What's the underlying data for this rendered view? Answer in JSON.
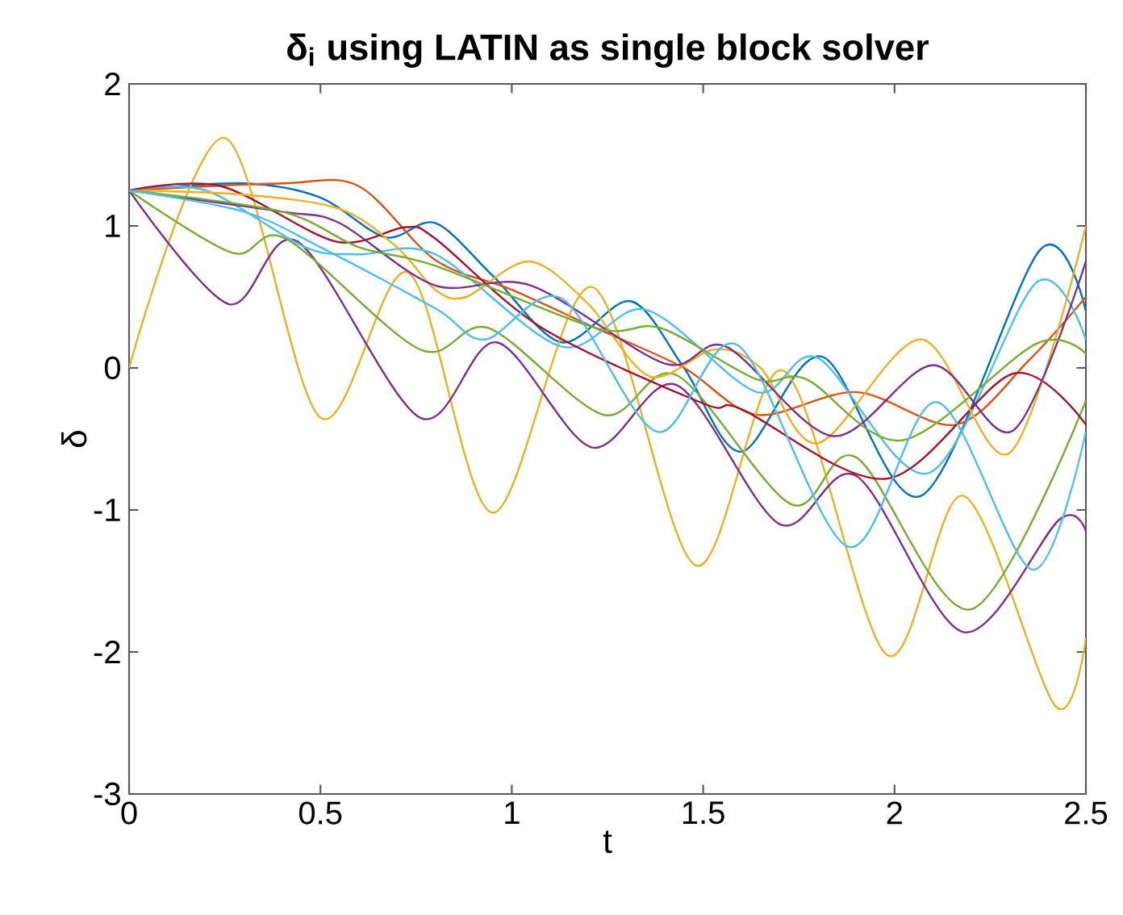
{
  "chart_data": {
    "type": "line",
    "title": "δ$_{i}$ using LATIN as single block solver",
    "xlabel": "t",
    "ylabel": "δ",
    "xlim": [
      0,
      2.5
    ],
    "ylim": [
      -3,
      2
    ],
    "xticks": [
      0,
      0.5,
      1,
      1.5,
      2,
      2.5
    ],
    "yticks": [
      -3,
      -2,
      -1,
      0,
      1,
      2
    ],
    "grid": false,
    "marker": "none",
    "line_style": "solid",
    "series": [
      {
        "color": "#0072bd",
        "x": [
          0,
          0.3,
          0.5,
          0.67,
          0.8,
          0.95,
          1.13,
          1.31,
          1.45,
          1.6,
          1.81,
          2.07,
          2.38,
          2.5
        ],
        "values": [
          1.25,
          1.3,
          1.2,
          0.92,
          1.02,
          0.65,
          0.18,
          0.47,
          0.0,
          -0.59,
          0.08,
          -0.9,
          0.83,
          0.4
        ]
      },
      {
        "color": "#d95319",
        "x": [
          0,
          0.4,
          0.6,
          0.8,
          1.0,
          1.22,
          1.45,
          1.64,
          1.9,
          2.16,
          2.35,
          2.5
        ],
        "values": [
          1.25,
          1.3,
          1.28,
          0.76,
          0.55,
          0.28,
          0.0,
          -0.33,
          -0.17,
          -0.4,
          0.05,
          0.5
        ]
      },
      {
        "color": "#edb120",
        "x": [
          0,
          0.25,
          0.5,
          0.73,
          0.95,
          1.21,
          1.48,
          1.71,
          1.98,
          2.18,
          2.42,
          2.5
        ],
        "values": [
          0,
          1.62,
          -0.35,
          0.67,
          -1.02,
          0.57,
          -1.39,
          -0.02,
          -2.02,
          -0.9,
          -2.38,
          -1.9
        ]
      },
      {
        "color": "#7e2f8e",
        "x": [
          0,
          0.26,
          0.44,
          0.76,
          0.96,
          1.21,
          1.43,
          1.7,
          1.9,
          2.18,
          2.43,
          2.5
        ],
        "values": [
          1.25,
          0.45,
          0.89,
          -0.35,
          0.18,
          -0.56,
          -0.12,
          -1.1,
          -0.76,
          -1.86,
          -1.07,
          -1.15
        ]
      },
      {
        "color": "#77ac30",
        "x": [
          0,
          0.27,
          0.41,
          0.76,
          0.94,
          1.24,
          1.43,
          1.73,
          1.9,
          2.2,
          2.5
        ],
        "values": [
          1.25,
          0.81,
          0.91,
          0.13,
          0.28,
          -0.33,
          -0.05,
          -0.96,
          -0.63,
          -1.7,
          -0.23
        ]
      },
      {
        "color": "#4dbeee",
        "x": [
          0,
          0.2,
          0.46,
          0.6,
          0.8,
          1.13,
          1.35,
          1.64,
          1.8,
          2.09,
          2.37,
          2.5
        ],
        "values": [
          1.25,
          1.25,
          0.85,
          0.8,
          0.8,
          0.15,
          0.41,
          -0.17,
          0.07,
          -0.74,
          0.6,
          0.2
        ]
      },
      {
        "color": "#a2142f",
        "x": [
          0,
          0.24,
          0.54,
          0.72,
          0.8,
          1.08,
          1.5,
          1.6,
          1.98,
          2.31,
          2.5
        ],
        "values": [
          1.25,
          1.28,
          0.89,
          0.99,
          0.91,
          0.28,
          -0.25,
          -0.29,
          -0.78,
          -0.04,
          -0.4
        ]
      },
      {
        "color": "#edb120",
        "x": [
          0,
          0.3,
          0.55,
          0.7,
          0.8,
          0.88,
          1.045,
          1.2,
          1.36,
          1.53,
          1.65,
          1.8,
          2.07,
          2.3,
          2.5
        ],
        "values": [
          1.25,
          1.22,
          1.12,
          0.85,
          0.55,
          0.5,
          0.75,
          0.45,
          -0.06,
          0.13,
          0.0,
          -0.53,
          0.2,
          -0.6,
          1.0
        ]
      },
      {
        "color": "#7e2f8e",
        "x": [
          0,
          0.4,
          0.55,
          0.8,
          1.05,
          1.4,
          1.56,
          1.84,
          2.1,
          2.31,
          2.5
        ],
        "values": [
          1.25,
          1.1,
          1.02,
          0.58,
          0.58,
          0.03,
          0.15,
          -0.48,
          0.02,
          -0.44,
          0.75
        ]
      },
      {
        "color": "#77ac30",
        "x": [
          0,
          0.4,
          0.6,
          0.8,
          1.22,
          1.39,
          1.64,
          1.77,
          2.02,
          2.37,
          2.5
        ],
        "values": [
          1.25,
          1.1,
          0.85,
          0.72,
          0.28,
          0.28,
          -0.08,
          -0.08,
          -0.51,
          0.17,
          0.1
        ]
      },
      {
        "color": "#4dbeee",
        "x": [
          0,
          0.3,
          0.5,
          0.8,
          0.93,
          1.13,
          1.38,
          1.59,
          1.88,
          2.11,
          2.36,
          2.5
        ],
        "values": [
          1.25,
          1.1,
          0.85,
          0.42,
          0.2,
          0.49,
          -0.45,
          0.16,
          -1.26,
          -0.24,
          -1.42,
          -0.45
        ]
      }
    ]
  }
}
